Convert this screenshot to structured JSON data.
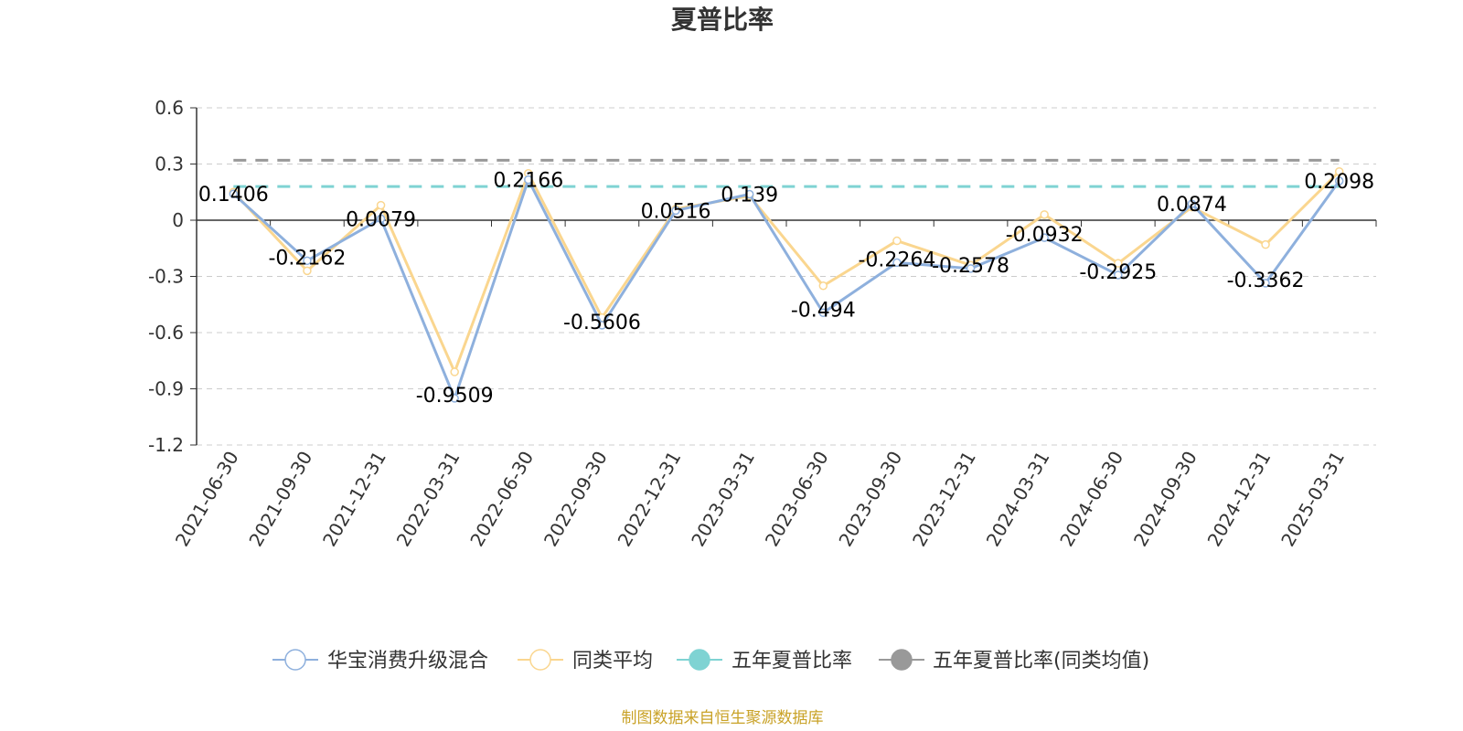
{
  "chart_data": {
    "type": "line",
    "title": "夏普比率",
    "categories": [
      "2021-06-30",
      "2021-09-30",
      "2021-12-31",
      "2022-03-31",
      "2022-06-30",
      "2022-09-30",
      "2022-12-31",
      "2023-03-31",
      "2023-06-30",
      "2023-09-30",
      "2023-12-31",
      "2024-03-31",
      "2024-06-30",
      "2024-09-30",
      "2024-12-31",
      "2025-03-31"
    ],
    "ylim": [
      -1.2,
      0.6
    ],
    "yticks": [
      0.6,
      0.3,
      0,
      -0.3,
      -0.6,
      -0.9,
      -1.2
    ],
    "ytick_labels": [
      "0.6",
      "0.3",
      "0",
      "-0.3",
      "-0.6",
      "-0.9",
      "-1.2"
    ],
    "grid": true,
    "legend_position": "bottom",
    "series": [
      {
        "name": "华宝消费升级混合",
        "color": "#8eb0dd",
        "values": [
          0.1406,
          -0.2162,
          0.0079,
          -0.9509,
          0.2166,
          -0.5606,
          0.0516,
          0.139,
          -0.494,
          -0.2264,
          -0.2578,
          -0.0932,
          -0.2925,
          0.0874,
          -0.3362,
          0.2098
        ],
        "labels": [
          "0.1406",
          "-0.2162",
          "0.0079",
          "-0.9509",
          "0.2166",
          "-0.5606",
          "0.0516",
          "0.139",
          "-0.494",
          "-0.2264",
          "-0.2578",
          "-0.0932",
          "-0.2925",
          "0.0874",
          "-0.3362",
          "0.2098"
        ]
      },
      {
        "name": "同类平均",
        "color": "#fad68f",
        "values": [
          0.15,
          -0.27,
          0.08,
          -0.81,
          0.25,
          -0.52,
          0.06,
          0.13,
          -0.35,
          -0.11,
          -0.24,
          0.03,
          -0.23,
          0.07,
          -0.13,
          0.26
        ]
      },
      {
        "name": "五年夏普比率",
        "color": "#7fd3d3",
        "constant": 0.18
      },
      {
        "name": "五年夏普比率(同类均值)",
        "color": "#999999",
        "constant": 0.32
      }
    ]
  },
  "source": "制图数据来自恒生聚源数据库"
}
